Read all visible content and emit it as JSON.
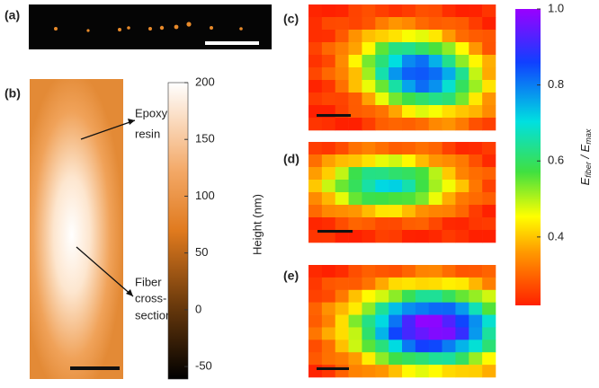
{
  "panels": {
    "a": "(a)",
    "b": "(b)",
    "c": "(c)",
    "d": "(d)",
    "e": "(e)"
  },
  "annotations": {
    "epoxy_resin": [
      "Epoxy",
      "resin"
    ],
    "fiber_cross_section": [
      "Fiber",
      "cross-",
      "section"
    ]
  },
  "height_colorbar": {
    "label": "Height (nm)",
    "lim": [
      -61,
      200
    ],
    "ticks": [
      200,
      150,
      100,
      50,
      0,
      -50
    ]
  },
  "modulus_colorbar": {
    "label": {
      "symbol_1": "E",
      "subscript_1": "fiber",
      "separator": " / ",
      "symbol_2": "E",
      "subscript_2": "max"
    },
    "lim": [
      0.22,
      1.0
    ],
    "ticks": [
      {
        "value": 1.0,
        "label": "1.0"
      },
      {
        "value": 0.8,
        "label": "0.8"
      },
      {
        "value": 0.6,
        "label": "0.6"
      },
      {
        "value": 0.4,
        "label": "0.4"
      }
    ]
  }
}
